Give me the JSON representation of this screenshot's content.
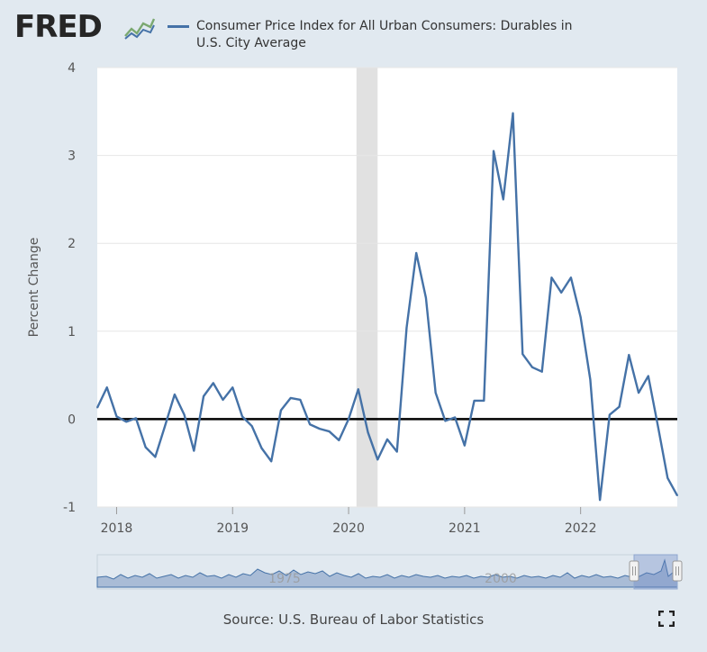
{
  "header": {
    "logo": "FRED",
    "legend_label": "Consumer Price Index for All Urban Consumers: Durables in U.S. City Average"
  },
  "footer": {
    "source": "Source: U.S. Bureau of Labor Statistics"
  },
  "navigator": {
    "labels": [
      "1975",
      "2000"
    ]
  },
  "colors": {
    "series": "#4572a7",
    "recession": "#e1e1e1",
    "background": "#e1e9f0",
    "zero_line": "#000000"
  },
  "icons": {
    "logo": "fred-graph-icon",
    "fullscreen": "fullscreen-icon"
  },
  "chart_data": {
    "type": "line",
    "title": "",
    "ylabel": "Percent Change",
    "xlabel": "",
    "ylim": [
      -1,
      4
    ],
    "yticks": [
      -1,
      0,
      1,
      2,
      3,
      4
    ],
    "xlim": [
      "2017-11",
      "2022-11"
    ],
    "xticks": [
      {
        "date": "2018-01",
        "label": "2018"
      },
      {
        "date": "2019-01",
        "label": "2019"
      },
      {
        "date": "2020-01",
        "label": "2020"
      },
      {
        "date": "2021-01",
        "label": "2021"
      },
      {
        "date": "2022-01",
        "label": "2022"
      }
    ],
    "recessions": [
      {
        "start": "2020-02",
        "end": "2020-04"
      }
    ],
    "zero_line": true,
    "grid": "horizontal",
    "series": [
      {
        "x": [
          "2017-11",
          "2017-12",
          "2018-01",
          "2018-02",
          "2018-03",
          "2018-04",
          "2018-05",
          "2018-06",
          "2018-07",
          "2018-08",
          "2018-09",
          "2018-10",
          "2018-11",
          "2018-12",
          "2019-01",
          "2019-02",
          "2019-03",
          "2019-04",
          "2019-05",
          "2019-06",
          "2019-07",
          "2019-08",
          "2019-09",
          "2019-10",
          "2019-11",
          "2019-12",
          "2020-01",
          "2020-02",
          "2020-03",
          "2020-04",
          "2020-05",
          "2020-06",
          "2020-07",
          "2020-08",
          "2020-09",
          "2020-10",
          "2020-11",
          "2020-12",
          "2021-01",
          "2021-02",
          "2021-03",
          "2021-04",
          "2021-05",
          "2021-06",
          "2021-07",
          "2021-08",
          "2021-09",
          "2021-10",
          "2021-11",
          "2021-12",
          "2022-01",
          "2022-02",
          "2022-03",
          "2022-04",
          "2022-05",
          "2022-06",
          "2022-07",
          "2022-08",
          "2022-09",
          "2022-10",
          "2022-11"
        ],
        "values": [
          0.13,
          0.36,
          0.03,
          -0.03,
          0.01,
          -0.32,
          -0.43,
          -0.08,
          0.28,
          0.05,
          -0.36,
          0.26,
          0.41,
          0.22,
          0.36,
          0.03,
          -0.08,
          -0.33,
          -0.48,
          0.1,
          0.24,
          0.22,
          -0.06,
          -0.11,
          -0.14,
          -0.24,
          0.0,
          0.34,
          -0.15,
          -0.46,
          -0.23,
          -0.37,
          1.04,
          1.89,
          1.38,
          0.3,
          -0.02,
          0.02,
          -0.3,
          0.21,
          0.21,
          3.05,
          2.5,
          3.48,
          0.74,
          0.59,
          0.54,
          1.61,
          1.44,
          1.61,
          1.16,
          0.45,
          -0.92,
          0.05,
          0.14,
          0.73,
          0.3,
          0.49,
          -0.08,
          -0.67,
          -0.87
        ]
      }
    ]
  }
}
